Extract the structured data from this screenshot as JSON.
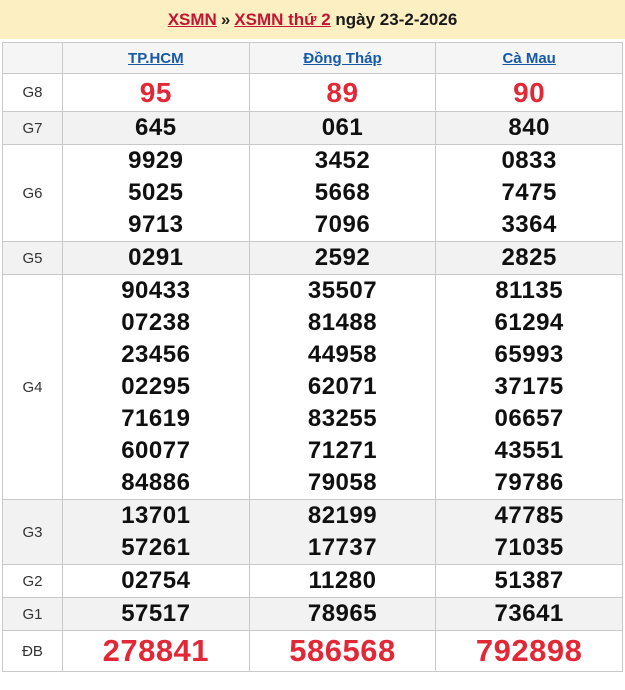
{
  "title": {
    "link1": "XSMN",
    "separator": "»",
    "link2": "XSMN thứ 2",
    "suffix": "ngày 23-2-2026"
  },
  "table": {
    "columns": [
      "TP.HCM",
      "Đồng Tháp",
      "Cà Mau"
    ],
    "rows": [
      {
        "label": "G8",
        "highlight": "red",
        "values": [
          [
            "95"
          ],
          [
            "89"
          ],
          [
            "90"
          ]
        ]
      },
      {
        "label": "G7",
        "values": [
          [
            "645"
          ],
          [
            "061"
          ],
          [
            "840"
          ]
        ]
      },
      {
        "label": "G6",
        "values": [
          [
            "9929",
            "5025",
            "9713"
          ],
          [
            "3452",
            "5668",
            "7096"
          ],
          [
            "0833",
            "7475",
            "3364"
          ]
        ]
      },
      {
        "label": "G5",
        "values": [
          [
            "0291"
          ],
          [
            "2592"
          ],
          [
            "2825"
          ]
        ]
      },
      {
        "label": "G4",
        "values": [
          [
            "90433",
            "07238",
            "23456",
            "02295",
            "71619",
            "60077",
            "84886"
          ],
          [
            "35507",
            "81488",
            "44958",
            "62071",
            "83255",
            "71271",
            "79058"
          ],
          [
            "81135",
            "61294",
            "65993",
            "37175",
            "06657",
            "43551",
            "79786"
          ]
        ]
      },
      {
        "label": "G3",
        "values": [
          [
            "13701",
            "57261"
          ],
          [
            "82199",
            "17737"
          ],
          [
            "47785",
            "71035"
          ]
        ]
      },
      {
        "label": "G2",
        "values": [
          [
            "02754"
          ],
          [
            "11280"
          ],
          [
            "51387"
          ]
        ]
      },
      {
        "label": "G1",
        "values": [
          [
            "57517"
          ],
          [
            "78965"
          ],
          [
            "73641"
          ]
        ]
      },
      {
        "label": "ĐB",
        "highlight": "red-large",
        "values": [
          [
            "278841"
          ],
          [
            "586568"
          ],
          [
            "792898"
          ]
        ]
      }
    ]
  },
  "colors": {
    "title_bar_background": "#fcf0c3",
    "title_link_red": "#c31432",
    "column_link_blue": "#1659a5",
    "highlight_number_red": "#e22837",
    "stripe_row_gray": "#f2f2f2",
    "border_gray": "#c9c9c9"
  }
}
